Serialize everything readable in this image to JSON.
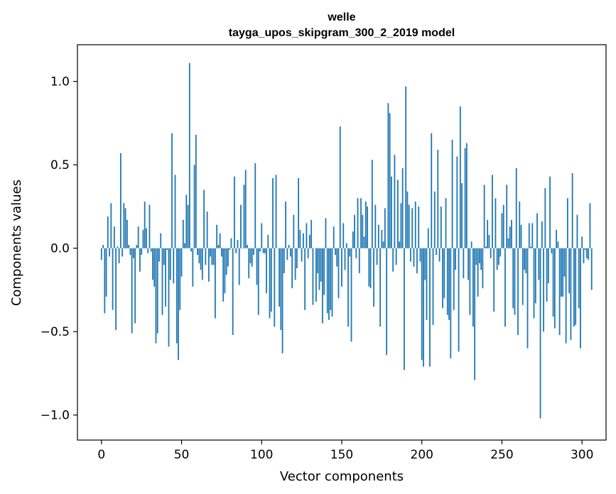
{
  "chart_data": {
    "type": "bar",
    "title": "welle",
    "subtitle": "tayga_upos_skipgram_300_2_2019 model",
    "xlabel": "Vector components",
    "ylabel": "Components values",
    "xlim": [
      -15,
      315
    ],
    "ylim": [
      -1.15,
      1.22
    ],
    "xticks": [
      0,
      50,
      100,
      150,
      200,
      250,
      300
    ],
    "xtick_labels": [
      "0",
      "50",
      "100",
      "150",
      "200",
      "250",
      "300"
    ],
    "yticks": [
      -1.0,
      -0.5,
      0.0,
      0.5,
      1.0
    ],
    "ytick_labels": [
      "−1.0",
      "−0.5",
      "0.0",
      "0.5",
      "1.0"
    ],
    "grid": false,
    "bar_color": "#1f77b4",
    "values": [
      -0.07,
      0.02,
      -0.39,
      -0.29,
      0.19,
      -0.05,
      0.27,
      -0.37,
      0.13,
      -0.49,
      0.01,
      -0.09,
      0.57,
      -0.05,
      0.27,
      0.24,
      0.17,
      0.02,
      -0.04,
      -0.51,
      -0.06,
      -0.45,
      0.02,
      0.13,
      -0.14,
      -0.04,
      0.11,
      0.28,
      0.12,
      -0.03,
      0.26,
      -0.02,
      -0.19,
      -0.23,
      -0.57,
      -0.51,
      -0.08,
      0.09,
      -0.4,
      -0.1,
      -0.35,
      -0.01,
      -0.59,
      -0.19,
      0.69,
      -0.21,
      0.44,
      -0.57,
      -0.67,
      -0.37,
      -0.17,
      0.17,
      0.03,
      0.32,
      0.26,
      1.11,
      -0.02,
      -0.23,
      0.5,
      0.68,
      -0.04,
      -0.09,
      -0.13,
      -0.19,
      0.35,
      -0.1,
      0.22,
      -0.2,
      -0.05,
      -0.1,
      -0.1,
      -0.42,
      0.14,
      0.02,
      0.09,
      -0.05,
      -0.32,
      -0.27,
      -0.16,
      -0.11,
      -0.01,
      0.06,
      -0.52,
      0.43,
      -0.03,
      0.05,
      -0.22,
      0.26,
      0.0,
      0.38,
      0.47,
      0.02,
      -0.18,
      -0.09,
      -0.11,
      -0.04,
      0.51,
      -0.22,
      -0.4,
      -0.02,
      0.15,
      -0.03,
      -0.03,
      -0.27,
      0.08,
      -0.42,
      -0.38,
      0.42,
      -0.47,
      0.44,
      0.0,
      -0.35,
      -0.49,
      -0.63,
      -0.15,
      0.28,
      -0.07,
      0.02,
      -0.05,
      -0.24,
      0.2,
      -0.19,
      -0.12,
      0.42,
      0.11,
      -0.08,
      0.09,
      -0.37,
      0.15,
      -0.06,
      0.08,
      0.17,
      -0.34,
      0.0,
      -0.32,
      -0.15,
      -0.25,
      -0.2,
      -0.45,
      -0.28,
      0.18,
      -0.39,
      -0.43,
      -0.37,
      -0.41,
      0.13,
      -0.04,
      -0.11,
      -0.3,
      0.73,
      -0.23,
      0.15,
      -0.13,
      0.03,
      -0.47,
      -0.05,
      -0.56,
      0.1,
      0.2,
      -0.06,
      0.3,
      -0.15,
      0.3,
      0.2,
      0.07,
      0.28,
      0.25,
      -0.23,
      -0.24,
      0.53,
      -0.35,
      0.26,
      -0.1,
      0.14,
      -0.47,
      0.11,
      0.04,
      0.24,
      -0.64,
      0.87,
      0.81,
      0.43,
      -0.14,
      0.56,
      -0.1,
      0.41,
      0.04,
      0.27,
      0.48,
      -0.73,
      0.97,
      0.34,
      0.26,
      -0.08,
      0.24,
      -0.11,
      0.28,
      -0.15,
      0.25,
      -0.08,
      -0.67,
      -0.71,
      -0.19,
      -0.43,
      0.12,
      -0.71,
      0.69,
      -0.46,
      0.34,
      -0.04,
      0.59,
      -0.08,
      0.25,
      -0.36,
      -0.3,
      0.3,
      -0.4,
      -0.43,
      -0.66,
      0.65,
      -0.37,
      -0.13,
      0.55,
      -0.62,
      0.85,
      0.39,
      -0.18,
      0.6,
      0.63,
      -0.19,
      -0.4,
      0.04,
      -0.47,
      -0.79,
      -0.1,
      -0.29,
      -0.09,
      -0.13,
      -0.24,
      0.38,
      0.01,
      0.17,
      0.08,
      -0.06,
      0.44,
      -0.38,
      0.3,
      -0.13,
      -0.1,
      -0.05,
      0.21,
      0.26,
      -0.47,
      0.38,
      0.06,
      0.13,
      0.17,
      -0.36,
      -0.4,
      0.48,
      -0.52,
      0.28,
      0.14,
      -0.34,
      -0.13,
      -0.15,
      -0.6,
      0.15,
      0.01,
      0.15,
      -0.42,
      -0.33,
      0.21,
      -0.19,
      -1.02,
      0.16,
      -0.5,
      0.36,
      -0.32,
      -0.21,
      0.43,
      -0.03,
      -0.41,
      -0.48,
      0.11,
      0.04,
      -0.52,
      -0.29,
      -0.29,
      -0.17,
      -0.57,
      0.3,
      -0.27,
      -0.55,
      0.45,
      -0.47,
      -0.46,
      0.2,
      -0.36,
      -0.6,
      0.07,
      -0.09,
      -0.01,
      -0.06,
      -0.07,
      0.27,
      -0.25
    ]
  }
}
